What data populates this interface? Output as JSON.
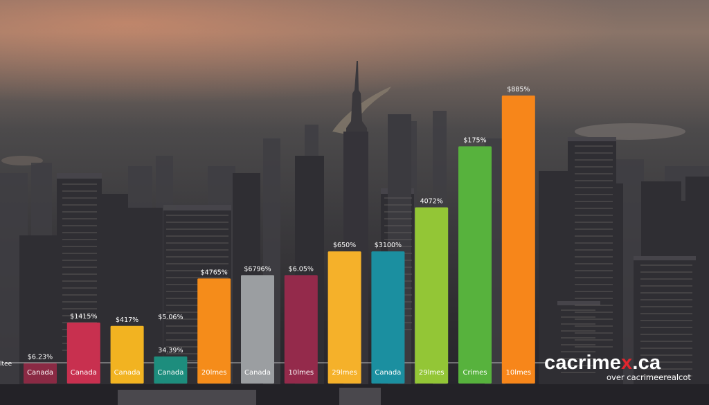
{
  "chart_data": {
    "type": "bar",
    "title": "",
    "xlabel": "",
    "ylabel": "",
    "categories": [
      "Canada",
      "Canada",
      "Canada",
      "Canada",
      "20lmes",
      "Canada",
      "10lmes",
      "29lmes",
      "Canada",
      "29lmes",
      "Crimes",
      "10lmes"
    ],
    "value_labels": [
      "$6.23%",
      "$1415%",
      "$417%",
      "34.39%",
      "$4765%",
      "$6796%",
      "$6.05%",
      "$650%",
      "$3100%",
      "4072%",
      "$175%",
      "$885%"
    ],
    "secondary_value_labels": [
      "",
      "",
      "",
      "$5.06%",
      "",
      "",
      "",
      "",
      "",
      "",
      "",
      ""
    ],
    "values": [
      0.6,
      1.8,
      1.7,
      0.8,
      3.1,
      3.2,
      3.2,
      3.9,
      3.9,
      5.2,
      7.0,
      8.5
    ],
    "colors": [
      "#8a2a44",
      "#c8304f",
      "#f2b321",
      "#1d8d7d",
      "#f58c1a",
      "#9b9ea1",
      "#942a4b",
      "#f5b12a",
      "#1b8fa0",
      "#93c636",
      "#57b23d",
      "#f7861a"
    ],
    "ylim": [
      0,
      9.2
    ]
  },
  "brand": {
    "name_before": "cacrime",
    "name_x": "x",
    "name_after": ".ca",
    "tagline": "over cacrimeerealcot"
  },
  "edge_text": "ltee"
}
